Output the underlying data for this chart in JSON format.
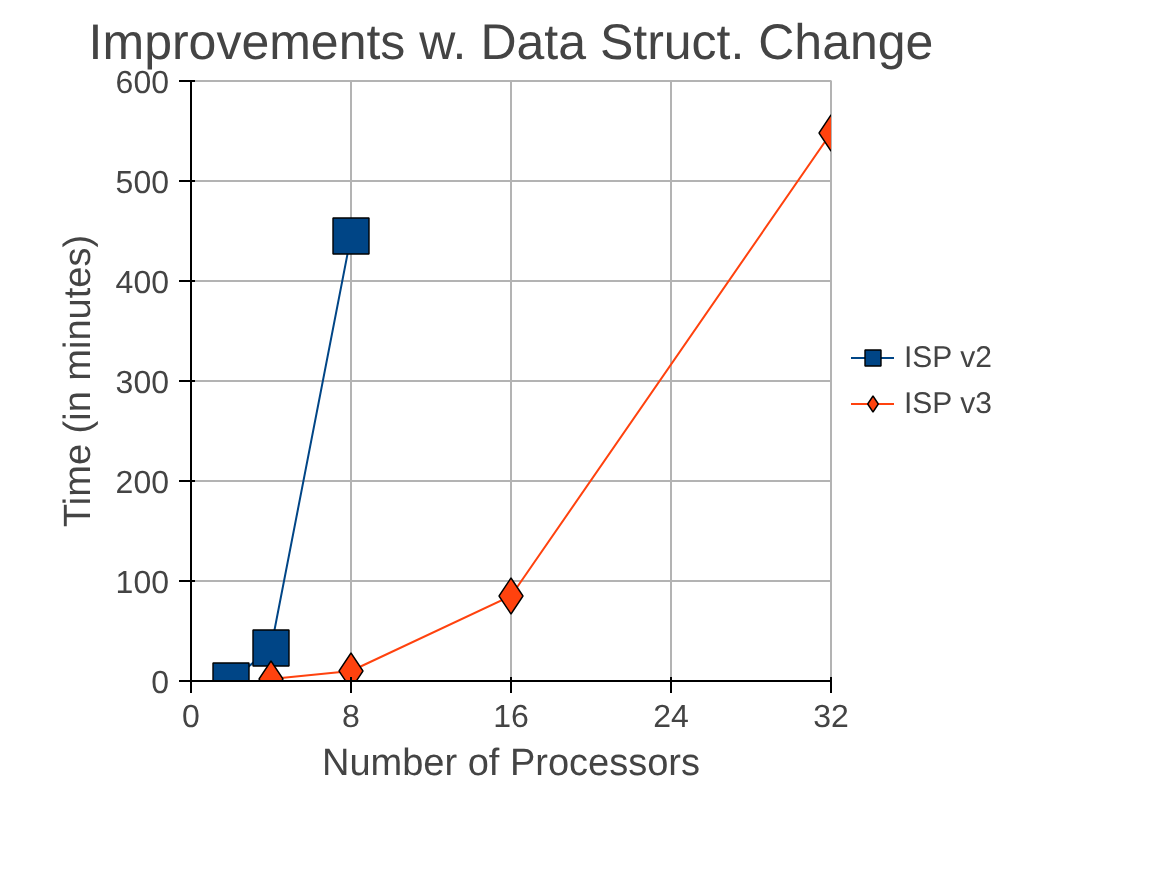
{
  "chart_data": {
    "type": "line",
    "title": "Improvements w. Data Struct. Change",
    "xlabel": "Number of Processors",
    "ylabel": "Time (in minutes)",
    "xlim": [
      0,
      32
    ],
    "xticks": [
      0,
      8,
      16,
      24,
      32
    ],
    "ylim": [
      0,
      600
    ],
    "yticks": [
      0,
      100,
      200,
      300,
      400,
      500,
      600
    ],
    "grid": true,
    "legend": "right",
    "series": [
      {
        "name": "ISP v2",
        "color": "#004586",
        "marker": "square",
        "x": [
          2,
          4,
          8
        ],
        "values": [
          0,
          33,
          445
        ]
      },
      {
        "name": "ISP v3",
        "color": "#ff420e",
        "marker": "diamond",
        "x": [
          4,
          8,
          16,
          32
        ],
        "values": [
          2,
          10,
          85,
          548
        ]
      }
    ]
  }
}
